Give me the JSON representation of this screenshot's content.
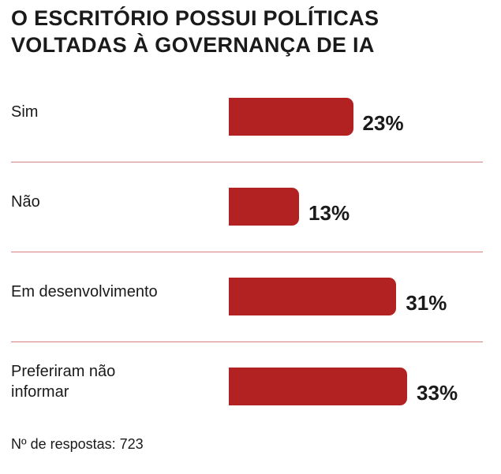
{
  "chart_data": {
    "type": "bar",
    "orientation": "horizontal",
    "title": "O ESCRITÓRIO POSSUI POLÍTICAS VOLTADAS À GOVERNANÇA DE IA",
    "categories": [
      "Sim",
      "Não",
      "Em desenvolvimento",
      "Preferiram não informar"
    ],
    "values": [
      23,
      13,
      31,
      33
    ],
    "value_labels": [
      "23%",
      "13%",
      "31%",
      "33%"
    ],
    "color": "#b22222",
    "note": "Nº de respostas: 723"
  }
}
